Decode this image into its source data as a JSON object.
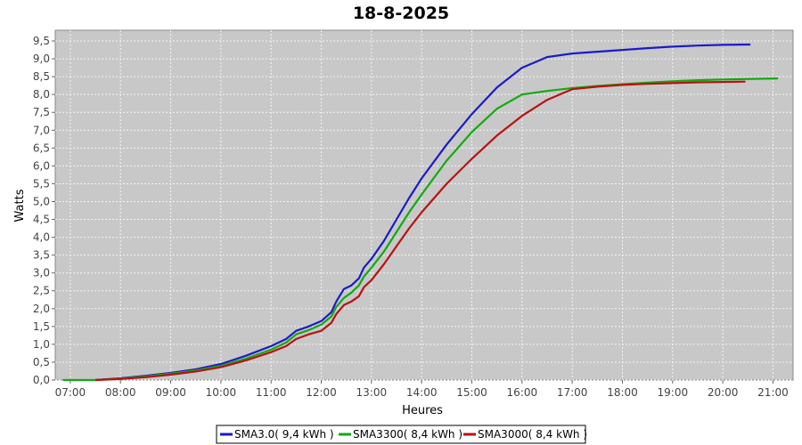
{
  "chart_data": {
    "type": "line",
    "title": "18-8-2025",
    "xlabel": "Heures",
    "ylabel": "Watts",
    "x_ticks": [
      "07:00",
      "08:00",
      "09:00",
      "10:00",
      "11:00",
      "12:00",
      "13:00",
      "14:00",
      "15:00",
      "16:00",
      "17:00",
      "18:00",
      "19:00",
      "20:00",
      "21:00"
    ],
    "y_ticks": [
      "0,0",
      "0,5",
      "1,0",
      "1,5",
      "2,0",
      "2,5",
      "3,0",
      "3,5",
      "4,0",
      "4,5",
      "5,0",
      "5,5",
      "6,0",
      "6,5",
      "7,0",
      "7,5",
      "8,0",
      "8,5",
      "9,0",
      "9,5"
    ],
    "xlim_hours": [
      6.7,
      21.4
    ],
    "ylim": [
      0,
      9.8
    ],
    "grid": true,
    "legend_position": "bottom",
    "series": [
      {
        "name": "SMA3.0( 9,4 kWh )",
        "color": "#1a1acc",
        "points": [
          [
            7.5,
            0.0
          ],
          [
            8.0,
            0.05
          ],
          [
            8.5,
            0.12
          ],
          [
            9.0,
            0.2
          ],
          [
            9.5,
            0.3
          ],
          [
            10.0,
            0.45
          ],
          [
            10.5,
            0.68
          ],
          [
            11.0,
            0.95
          ],
          [
            11.3,
            1.15
          ],
          [
            11.5,
            1.38
          ],
          [
            11.75,
            1.5
          ],
          [
            12.0,
            1.65
          ],
          [
            12.2,
            1.9
          ],
          [
            12.3,
            2.2
          ],
          [
            12.45,
            2.55
          ],
          [
            12.6,
            2.65
          ],
          [
            12.75,
            2.85
          ],
          [
            12.85,
            3.15
          ],
          [
            13.0,
            3.4
          ],
          [
            13.25,
            3.9
          ],
          [
            13.5,
            4.5
          ],
          [
            13.75,
            5.1
          ],
          [
            14.0,
            5.65
          ],
          [
            14.5,
            6.6
          ],
          [
            15.0,
            7.45
          ],
          [
            15.5,
            8.2
          ],
          [
            16.0,
            8.75
          ],
          [
            16.5,
            9.05
          ],
          [
            17.0,
            9.15
          ],
          [
            17.5,
            9.2
          ],
          [
            18.0,
            9.25
          ],
          [
            18.5,
            9.3
          ],
          [
            19.0,
            9.34
          ],
          [
            19.5,
            9.37
          ],
          [
            20.0,
            9.39
          ],
          [
            20.55,
            9.4
          ]
        ]
      },
      {
        "name": "SMA3300( 8,4 kWh )",
        "color": "#11aa11",
        "points": [
          [
            6.85,
            0.0
          ],
          [
            7.5,
            0.0
          ],
          [
            8.0,
            0.04
          ],
          [
            8.5,
            0.1
          ],
          [
            9.0,
            0.18
          ],
          [
            9.5,
            0.27
          ],
          [
            10.0,
            0.4
          ],
          [
            10.5,
            0.6
          ],
          [
            11.0,
            0.85
          ],
          [
            11.3,
            1.05
          ],
          [
            11.5,
            1.28
          ],
          [
            11.75,
            1.4
          ],
          [
            12.0,
            1.55
          ],
          [
            12.2,
            1.78
          ],
          [
            12.3,
            2.05
          ],
          [
            12.45,
            2.3
          ],
          [
            12.6,
            2.45
          ],
          [
            12.75,
            2.65
          ],
          [
            12.85,
            2.9
          ],
          [
            13.0,
            3.15
          ],
          [
            13.25,
            3.6
          ],
          [
            13.5,
            4.15
          ],
          [
            13.75,
            4.7
          ],
          [
            14.0,
            5.2
          ],
          [
            14.5,
            6.15
          ],
          [
            15.0,
            6.95
          ],
          [
            15.5,
            7.6
          ],
          [
            16.0,
            8.0
          ],
          [
            16.5,
            8.1
          ],
          [
            17.0,
            8.18
          ],
          [
            17.5,
            8.24
          ],
          [
            18.0,
            8.29
          ],
          [
            18.5,
            8.33
          ],
          [
            19.0,
            8.37
          ],
          [
            19.5,
            8.4
          ],
          [
            20.0,
            8.42
          ],
          [
            21.1,
            8.45
          ]
        ]
      },
      {
        "name": "SMA3000( 8,4 kWh )",
        "color": "#bb1111",
        "points": [
          [
            7.5,
            0.0
          ],
          [
            8.0,
            0.03
          ],
          [
            8.5,
            0.08
          ],
          [
            9.0,
            0.15
          ],
          [
            9.5,
            0.24
          ],
          [
            10.0,
            0.36
          ],
          [
            10.5,
            0.55
          ],
          [
            11.0,
            0.78
          ],
          [
            11.3,
            0.95
          ],
          [
            11.5,
            1.15
          ],
          [
            11.75,
            1.28
          ],
          [
            12.0,
            1.38
          ],
          [
            12.2,
            1.6
          ],
          [
            12.3,
            1.85
          ],
          [
            12.45,
            2.1
          ],
          [
            12.6,
            2.2
          ],
          [
            12.75,
            2.35
          ],
          [
            12.85,
            2.6
          ],
          [
            13.0,
            2.8
          ],
          [
            13.25,
            3.25
          ],
          [
            13.5,
            3.75
          ],
          [
            13.75,
            4.25
          ],
          [
            14.0,
            4.7
          ],
          [
            14.5,
            5.5
          ],
          [
            15.0,
            6.2
          ],
          [
            15.5,
            6.85
          ],
          [
            16.0,
            7.4
          ],
          [
            16.5,
            7.85
          ],
          [
            17.0,
            8.15
          ],
          [
            17.5,
            8.22
          ],
          [
            18.0,
            8.27
          ],
          [
            18.5,
            8.3
          ],
          [
            19.0,
            8.32
          ],
          [
            19.5,
            8.34
          ],
          [
            20.0,
            8.35
          ],
          [
            20.45,
            8.36
          ]
        ]
      }
    ]
  }
}
